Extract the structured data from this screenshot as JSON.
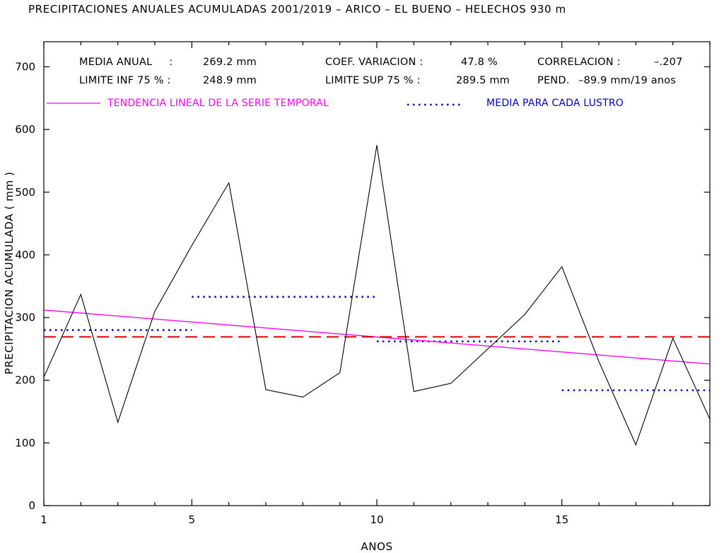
{
  "chart_data": {
    "type": "line",
    "title": "PRECIPITACIONES ANUALES ACUMULADAS 2001/2019 – ARICO – EL BUENO – HELECHOS  930 m",
    "xlabel": "ANOS",
    "ylabel": "PRECIPITACION ACUMULADA ( mm )",
    "xlim": [
      1,
      19
    ],
    "ylim": [
      0,
      740
    ],
    "xticks": [
      1,
      5,
      10,
      15
    ],
    "xtick_labels": [
      "1",
      "5",
      "10",
      "15"
    ],
    "yticks": [
      0,
      100,
      200,
      300,
      400,
      500,
      600,
      700
    ],
    "ytick_labels": [
      "0",
      "100",
      "200",
      "300",
      "400",
      "500",
      "600",
      "700"
    ],
    "stats": {
      "media_anual": {
        "label": "MEDIA ANUAL     :",
        "value": "269.2 mm"
      },
      "limite_inf": {
        "label": "LIMITE INF 75 % :",
        "value": "248.9 mm"
      },
      "coef_variacion": {
        "label": "COEF. VARIACION :",
        "value": "47.8 %"
      },
      "limite_sup": {
        "label": "LIMITE SUP 75 % :",
        "value": "289.5 mm"
      },
      "correlacion": {
        "label": "CORRELACION :",
        "value": "–.207"
      },
      "pendiente": {
        "label": "PEND.",
        "value": "–89.9 mm/19 anos"
      }
    },
    "legend": [
      {
        "label": "TENDENCIA LINEAL DE LA SERIE TEMPORAL",
        "color": "#ff00ff",
        "style": "solid"
      },
      {
        "label": "MEDIA PARA CADA LUSTRO",
        "color": "#0000cc",
        "style": "dotted"
      }
    ],
    "series": [
      {
        "kind": "annual",
        "color": "#000000",
        "x": [
          1,
          2,
          3,
          4,
          5,
          6,
          7,
          8,
          9,
          10,
          11,
          12,
          13,
          14,
          15,
          16,
          17,
          18,
          19
        ],
        "values": [
          205,
          337,
          133,
          310,
          415,
          515,
          185,
          173,
          212,
          575,
          182,
          195,
          250,
          305,
          381,
          230,
          97,
          267,
          138
        ]
      },
      {
        "kind": "mean",
        "color": "#dd0000",
        "style": "dashed",
        "x": [
          1,
          19
        ],
        "values": [
          269.2,
          269.2
        ]
      },
      {
        "kind": "trend",
        "color": "#ff00ff",
        "style": "solid",
        "x": [
          1,
          19
        ],
        "values": [
          312,
          226
        ]
      },
      {
        "kind": "lustro_mean",
        "color": "#0000cc",
        "style": "dotted",
        "segments": [
          {
            "x": [
              1,
              5
            ],
            "value": 280
          },
          {
            "x": [
              5,
              10
            ],
            "value": 333
          },
          {
            "x": [
              10,
              15
            ],
            "value": 262
          },
          {
            "x": [
              15,
              19
            ],
            "value": 184
          }
        ]
      }
    ],
    "grid": false
  }
}
